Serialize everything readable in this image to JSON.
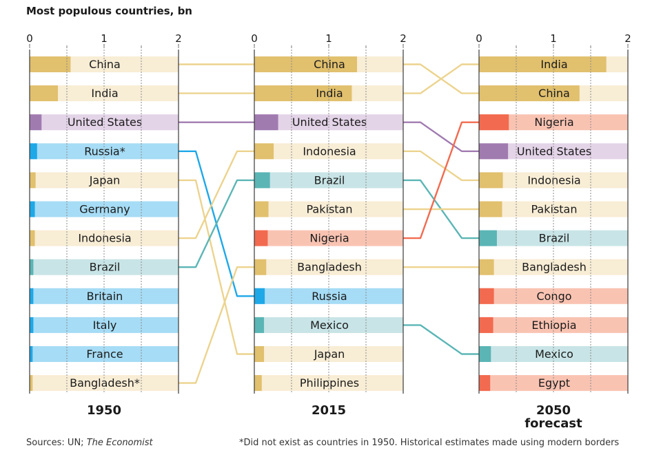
{
  "title": "Most populous countries, bn",
  "sources": {
    "prefix": "Sources: UN; ",
    "italic": "The Economist"
  },
  "footnote": "*Did not exist as countries in 1950. Historical estimates made using modern borders",
  "colors": {
    "China": {
      "dark": "#e1c06e",
      "light": "#f8edd5"
    },
    "India": {
      "dark": "#e1c06e",
      "light": "#f8edd5"
    },
    "Japan": {
      "dark": "#e1c06e",
      "light": "#f8edd5"
    },
    "Indonesia": {
      "dark": "#e1c06e",
      "light": "#f8edd5"
    },
    "Bangladesh*": {
      "dark": "#e1c06e",
      "light": "#f8edd5"
    },
    "Bangladesh": {
      "dark": "#e1c06e",
      "light": "#f8edd5"
    },
    "Pakistan": {
      "dark": "#e1c06e",
      "light": "#f8edd5"
    },
    "Philippines": {
      "dark": "#e1c06e",
      "light": "#f8edd5"
    },
    "United States": {
      "dark": "#a07bb0",
      "light": "#e4d4e8"
    },
    "Russia*": {
      "dark": "#1ea8e8",
      "light": "#a6dcf5"
    },
    "Russia": {
      "dark": "#1ea8e8",
      "light": "#a6dcf5"
    },
    "Germany": {
      "dark": "#1ea8e8",
      "light": "#a6dcf5"
    },
    "Britain": {
      "dark": "#1ea8e8",
      "light": "#a6dcf5"
    },
    "Italy": {
      "dark": "#1ea8e8",
      "light": "#a6dcf5"
    },
    "France": {
      "dark": "#1ea8e8",
      "light": "#a6dcf5"
    },
    "Brazil": {
      "dark": "#5bb5b5",
      "light": "#c8e4e6"
    },
    "Mexico": {
      "dark": "#5bb5b5",
      "light": "#c8e4e6"
    },
    "Nigeria": {
      "dark": "#f26a4f",
      "light": "#f9c3b2"
    },
    "Congo": {
      "dark": "#f26a4f",
      "light": "#f9c3b2"
    },
    "Ethiopia": {
      "dark": "#f26a4f",
      "light": "#f9c3b2"
    },
    "Egypt": {
      "dark": "#f26a4f",
      "light": "#f9c3b2"
    }
  },
  "chart_data": {
    "type": "bar",
    "title": "Most populous countries, bn",
    "xlim": [
      0,
      2
    ],
    "xticks": [
      "0",
      "1",
      "2"
    ],
    "panels": [
      {
        "label": "1950",
        "sublabel": "",
        "countries": [
          "China",
          "India",
          "United States",
          "Russia*",
          "Japan",
          "Germany",
          "Indonesia",
          "Brazil",
          "Britain",
          "Italy",
          "France",
          "Bangladesh*"
        ],
        "values": [
          0.55,
          0.38,
          0.16,
          0.1,
          0.08,
          0.07,
          0.07,
          0.05,
          0.05,
          0.05,
          0.04,
          0.04
        ]
      },
      {
        "label": "2015",
        "sublabel": "",
        "countries": [
          "China",
          "India",
          "United States",
          "Indonesia",
          "Brazil",
          "Pakistan",
          "Nigeria",
          "Bangladesh",
          "Russia",
          "Mexico",
          "Japan",
          "Philippines"
        ],
        "values": [
          1.38,
          1.31,
          0.32,
          0.26,
          0.21,
          0.19,
          0.18,
          0.16,
          0.14,
          0.13,
          0.13,
          0.1
        ]
      },
      {
        "label": "2050",
        "sublabel": "forecast",
        "countries": [
          "India",
          "China",
          "Nigeria",
          "United States",
          "Indonesia",
          "Pakistan",
          "Brazil",
          "Bangladesh",
          "Congo",
          "Ethiopia",
          "Mexico",
          "Egypt"
        ],
        "values": [
          1.71,
          1.35,
          0.4,
          0.39,
          0.32,
          0.31,
          0.24,
          0.2,
          0.2,
          0.19,
          0.16,
          0.15
        ]
      }
    ],
    "connections": [
      {
        "from_panel": 0,
        "from": "China",
        "to": "China",
        "color": "#ecd38e"
      },
      {
        "from_panel": 0,
        "from": "India",
        "to": "India",
        "color": "#ecd38e"
      },
      {
        "from_panel": 0,
        "from": "United States",
        "to": "United States",
        "color": "#a07bb0"
      },
      {
        "from_panel": 0,
        "from": "Russia*",
        "to": "Russia",
        "color": "#1ea8e8"
      },
      {
        "from_panel": 0,
        "from": "Japan",
        "to": "Japan",
        "color": "#ecd38e"
      },
      {
        "from_panel": 0,
        "from": "Indonesia",
        "to": "Indonesia",
        "color": "#ecd38e"
      },
      {
        "from_panel": 0,
        "from": "Brazil",
        "to": "Brazil",
        "color": "#5bb5b5"
      },
      {
        "from_panel": 0,
        "from": "Bangladesh*",
        "to": "Bangladesh",
        "color": "#ecd38e"
      },
      {
        "from_panel": 1,
        "from": "China",
        "to": "China",
        "color": "#ecd38e"
      },
      {
        "from_panel": 1,
        "from": "India",
        "to": "India",
        "color": "#ecd38e"
      },
      {
        "from_panel": 1,
        "from": "United States",
        "to": "United States",
        "color": "#a07bb0"
      },
      {
        "from_panel": 1,
        "from": "Indonesia",
        "to": "Indonesia",
        "color": "#ecd38e"
      },
      {
        "from_panel": 1,
        "from": "Brazil",
        "to": "Brazil",
        "color": "#5bb5b5"
      },
      {
        "from_panel": 1,
        "from": "Pakistan",
        "to": "Pakistan",
        "color": "#ecd38e"
      },
      {
        "from_panel": 1,
        "from": "Nigeria",
        "to": "Nigeria",
        "color": "#f26a4f"
      },
      {
        "from_panel": 1,
        "from": "Bangladesh",
        "to": "Bangladesh",
        "color": "#ecd38e"
      },
      {
        "from_panel": 1,
        "from": "Mexico",
        "to": "Mexico",
        "color": "#5bb5b5"
      }
    ],
    "grid": true
  }
}
